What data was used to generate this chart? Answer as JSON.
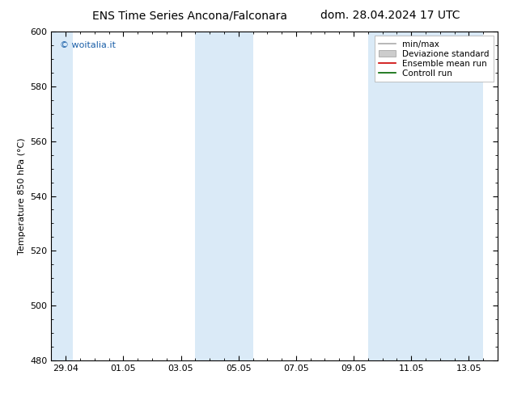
{
  "title_left": "ENS Time Series Ancona/Falconara",
  "title_right": "dom. 28.04.2024 17 UTC",
  "ylabel": "Temperature 850 hPa (°C)",
  "ylim": [
    480,
    600
  ],
  "yticks": [
    480,
    500,
    520,
    540,
    560,
    580,
    600
  ],
  "background_color": "#ffffff",
  "plot_bg_color": "#ffffff",
  "shaded_band_color": "#daeaf7",
  "watermark": "© woitalia.it",
  "watermark_color": "#1a5fa8",
  "legend_items": [
    {
      "label": "min/max",
      "color": "#aaaaaa",
      "lw": 1.2,
      "style": "-",
      "type": "line"
    },
    {
      "label": "Deviazione standard",
      "color": "#cccccc",
      "lw": 8,
      "style": "-",
      "type": "patch"
    },
    {
      "label": "Ensemble mean run",
      "color": "#cc0000",
      "lw": 1.2,
      "style": "-",
      "type": "line"
    },
    {
      "label": "Controll run",
      "color": "#006600",
      "lw": 1.2,
      "style": "-",
      "type": "line"
    }
  ],
  "shaded_columns": [
    {
      "x_start": -0.5,
      "x_end": 0.25
    },
    {
      "x_start": 4.5,
      "x_end": 6.5
    },
    {
      "x_start": 10.5,
      "x_end": 14.5
    }
  ],
  "x_tick_labels": [
    "29.04",
    "01.05",
    "03.05",
    "05.05",
    "07.05",
    "09.05",
    "11.05",
    "13.05"
  ],
  "x_tick_positions": [
    0,
    2,
    4,
    6,
    8,
    10,
    12,
    14
  ],
  "xlim": [
    -0.5,
    14.5
  ],
  "title_fontsize": 10,
  "tick_fontsize": 8,
  "ylabel_fontsize": 8,
  "watermark_fontsize": 8,
  "legend_fontsize": 7.5
}
